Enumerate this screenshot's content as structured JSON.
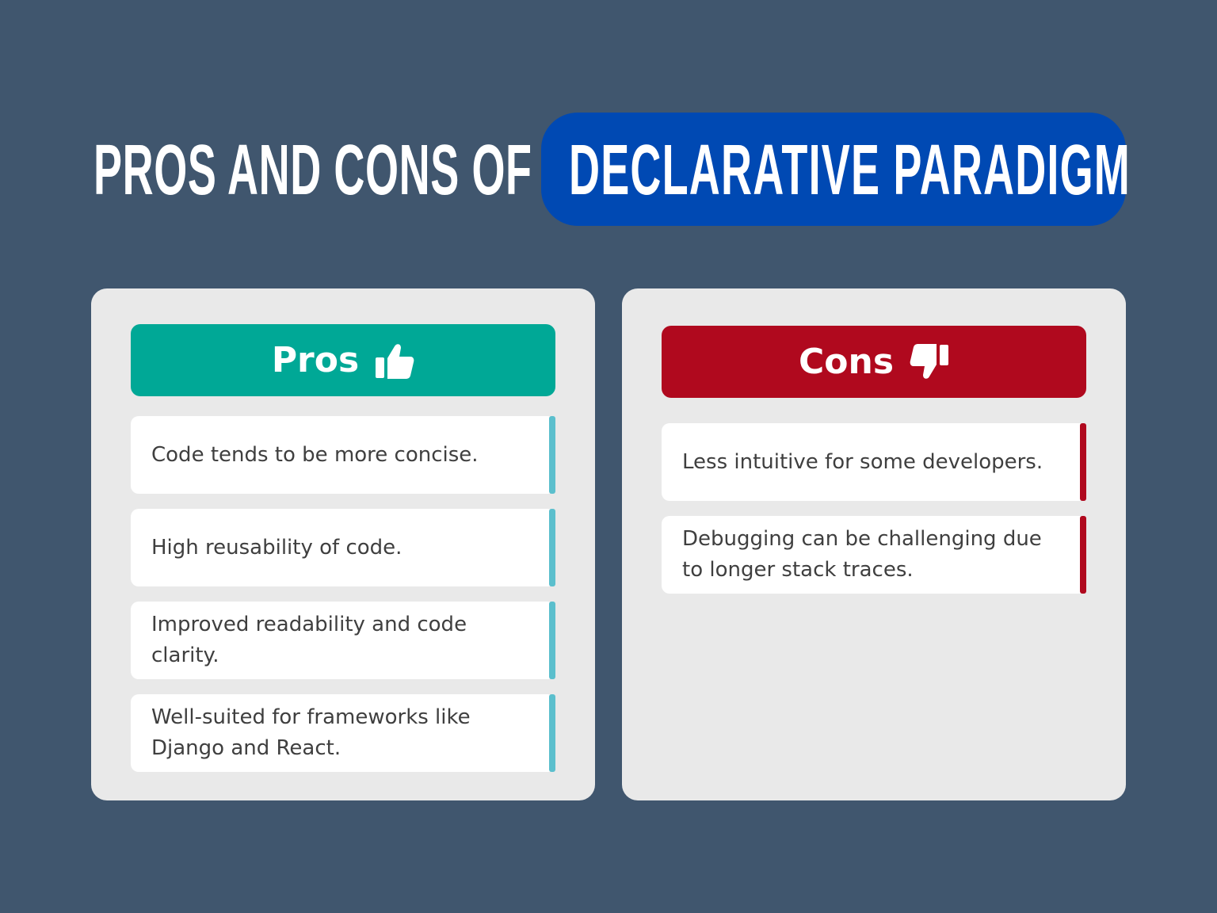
{
  "title": {
    "prefix": "PROS AND CONS OF",
    "highlight": "DECLARATIVE PARADIGM"
  },
  "colors": {
    "background": "#40566e",
    "highlight_pill": "#0049b3",
    "panel": "#e9e9e9",
    "pros_header": "#00a896",
    "cons_header": "#b0091e",
    "pros_accent": "#5bbfcd",
    "cons_accent": "#b0091e"
  },
  "pros": {
    "heading": "Pros",
    "icon": "thumbs-up-icon",
    "items": [
      "Code tends to be more concise.",
      "High reusability of code.",
      "Improved readability and code clarity.",
      "Well-suited for frameworks like Django and React."
    ]
  },
  "cons": {
    "heading": "Cons",
    "icon": "thumbs-down-icon",
    "items": [
      "Less intuitive for some developers.",
      "Debugging can be challenging due to longer stack traces."
    ]
  }
}
